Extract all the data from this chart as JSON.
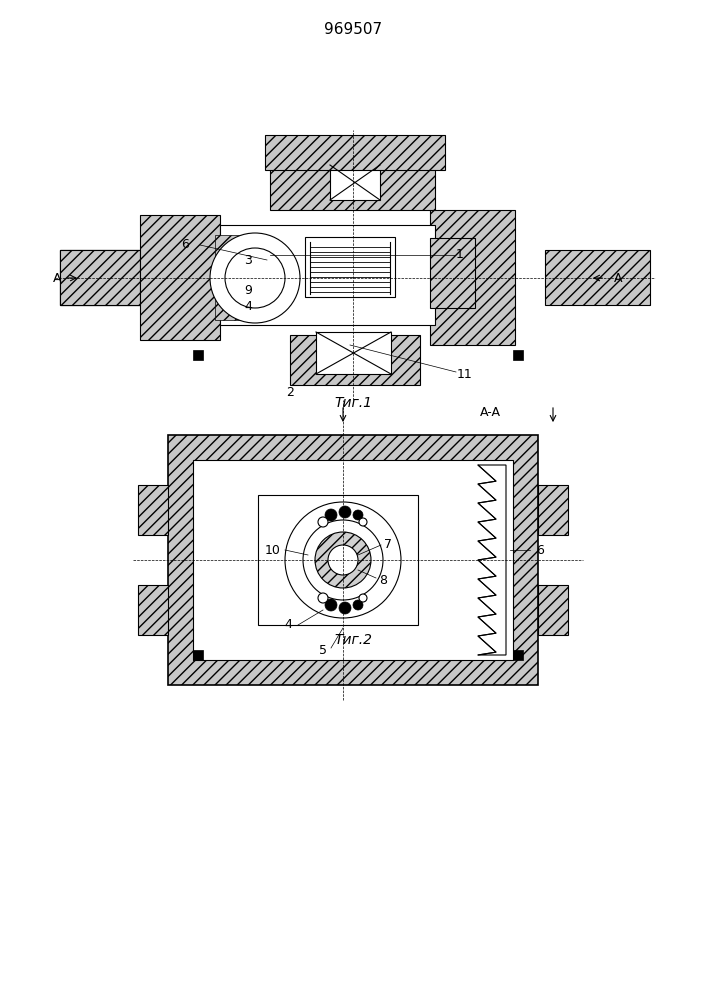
{
  "title": "969507",
  "title_fontsize": 11,
  "fig1_caption": "Τиг.1",
  "fig2_caption": "Τиг.2",
  "aa_label": "A-A",
  "background_color": "#ffffff",
  "line_color": "#000000",
  "hatch_color": "#000000",
  "label_fontsize": 9,
  "caption_fontsize": 10
}
